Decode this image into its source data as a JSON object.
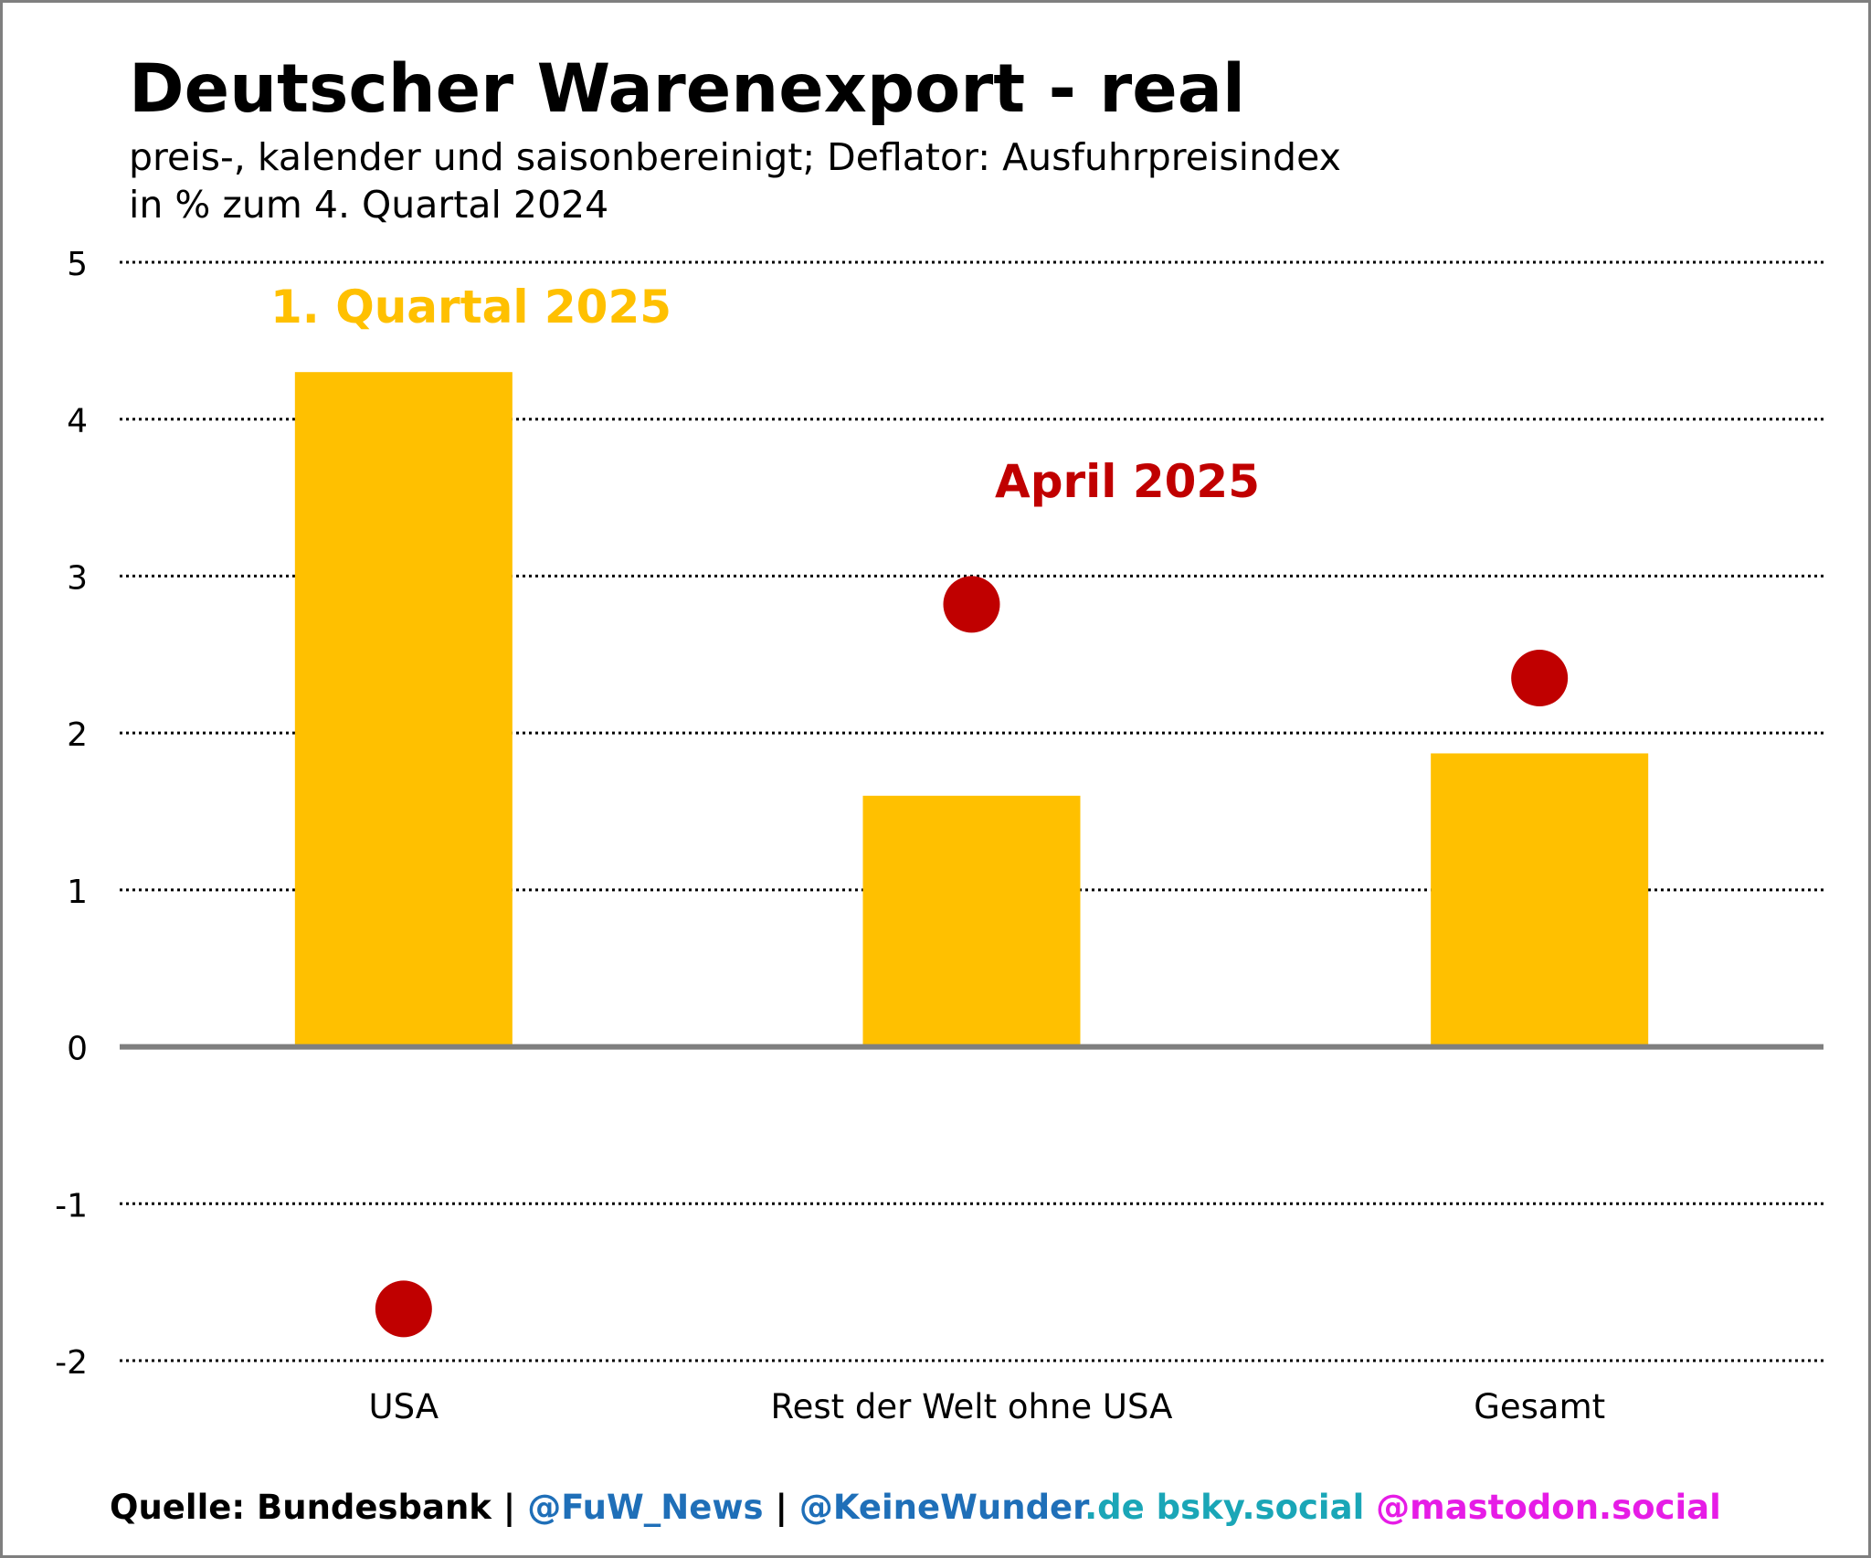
{
  "chart_data": {
    "type": "bar",
    "title": "Deutscher Warenexport - real",
    "subtitle_lines": [
      "preis-, kalender und saisonbereinigt; Deflator: Ausfuhrpreisindex",
      "in % zum 4. Quartal 2024"
    ],
    "xlabel": "",
    "ylabel": "",
    "categories": [
      "USA",
      "Rest der Welt ohne USA",
      "Gesamt"
    ],
    "ylim": [
      -2,
      5
    ],
    "yticks": [
      5,
      4,
      3,
      2,
      1,
      0,
      -1,
      -2
    ],
    "ytick_labels": [
      "5",
      "4",
      "3",
      "2",
      "1",
      "0",
      "-1",
      "-2"
    ],
    "grid": true,
    "series": [
      {
        "name": "1. Quartal 2025",
        "kind": "bar",
        "color": "#FFC000",
        "values": [
          4.3,
          1.6,
          1.87
        ]
      },
      {
        "name": "April 2025",
        "kind": "scatter",
        "color": "#C00000",
        "values": [
          -1.67,
          2.82,
          2.35
        ]
      }
    ]
  },
  "footer": {
    "parts": [
      {
        "text": "Quelle: Bundesbank | ",
        "color": "#000000"
      },
      {
        "text": "@FuW_News",
        "color": "#1F6FB8"
      },
      {
        "text": " | ",
        "color": "#000000"
      },
      {
        "text": "@KeineWunder",
        "color": "#1F6FB8"
      },
      {
        "text": ".de ",
        "color": "#1AA6B7"
      },
      {
        "text": "bsky.social ",
        "color": "#1AA6B7"
      },
      {
        "text": "@mastodon.social",
        "color": "#E61CE6"
      }
    ]
  },
  "colors": {
    "frame": "#7F7F7F",
    "grid": "#000000",
    "zero_line": "#7F7F7F",
    "text": "#000000"
  }
}
